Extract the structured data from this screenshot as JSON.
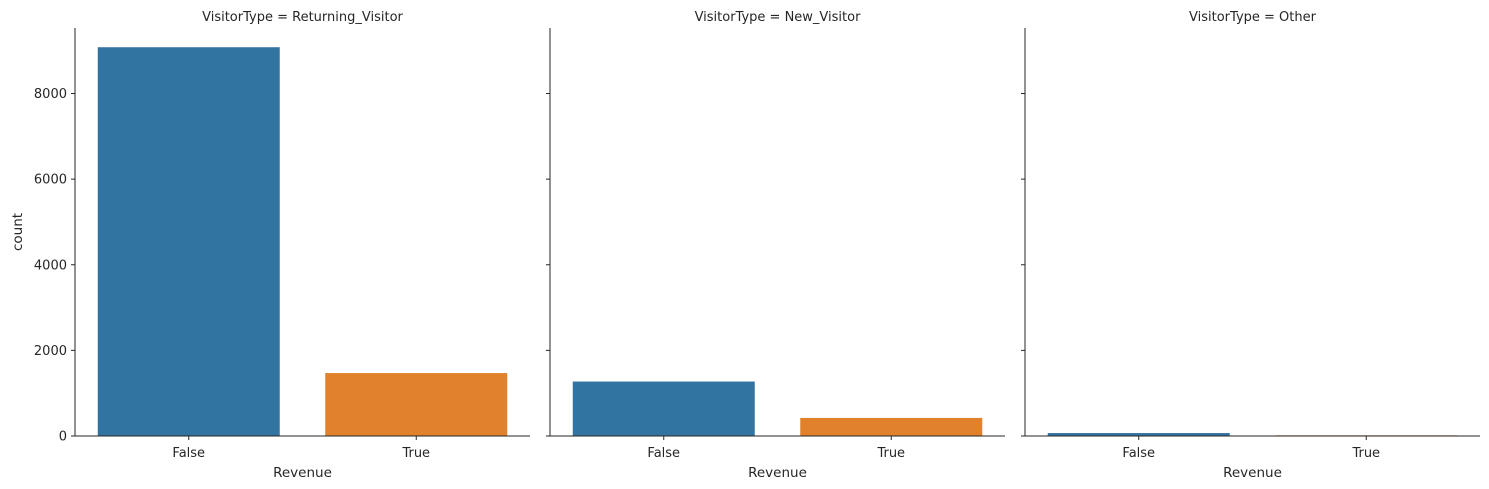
{
  "chart_data": {
    "type": "bar",
    "xlabel": "Revenue",
    "ylabel": "count",
    "ylim": [
      0,
      9530
    ],
    "yticks": [
      0,
      2000,
      4000,
      6000,
      8000
    ],
    "categories": [
      "False",
      "True"
    ],
    "colors": {
      "False": "#3274a1",
      "True": "#e1812c"
    },
    "panels": [
      {
        "title": "VisitorType = Returning_Visitor",
        "values": [
          9081,
          1470
        ]
      },
      {
        "title": "VisitorType = New_Visitor",
        "values": [
          1272,
          422
        ]
      },
      {
        "title": "VisitorType = Other",
        "values": [
          69,
          16
        ]
      }
    ]
  }
}
